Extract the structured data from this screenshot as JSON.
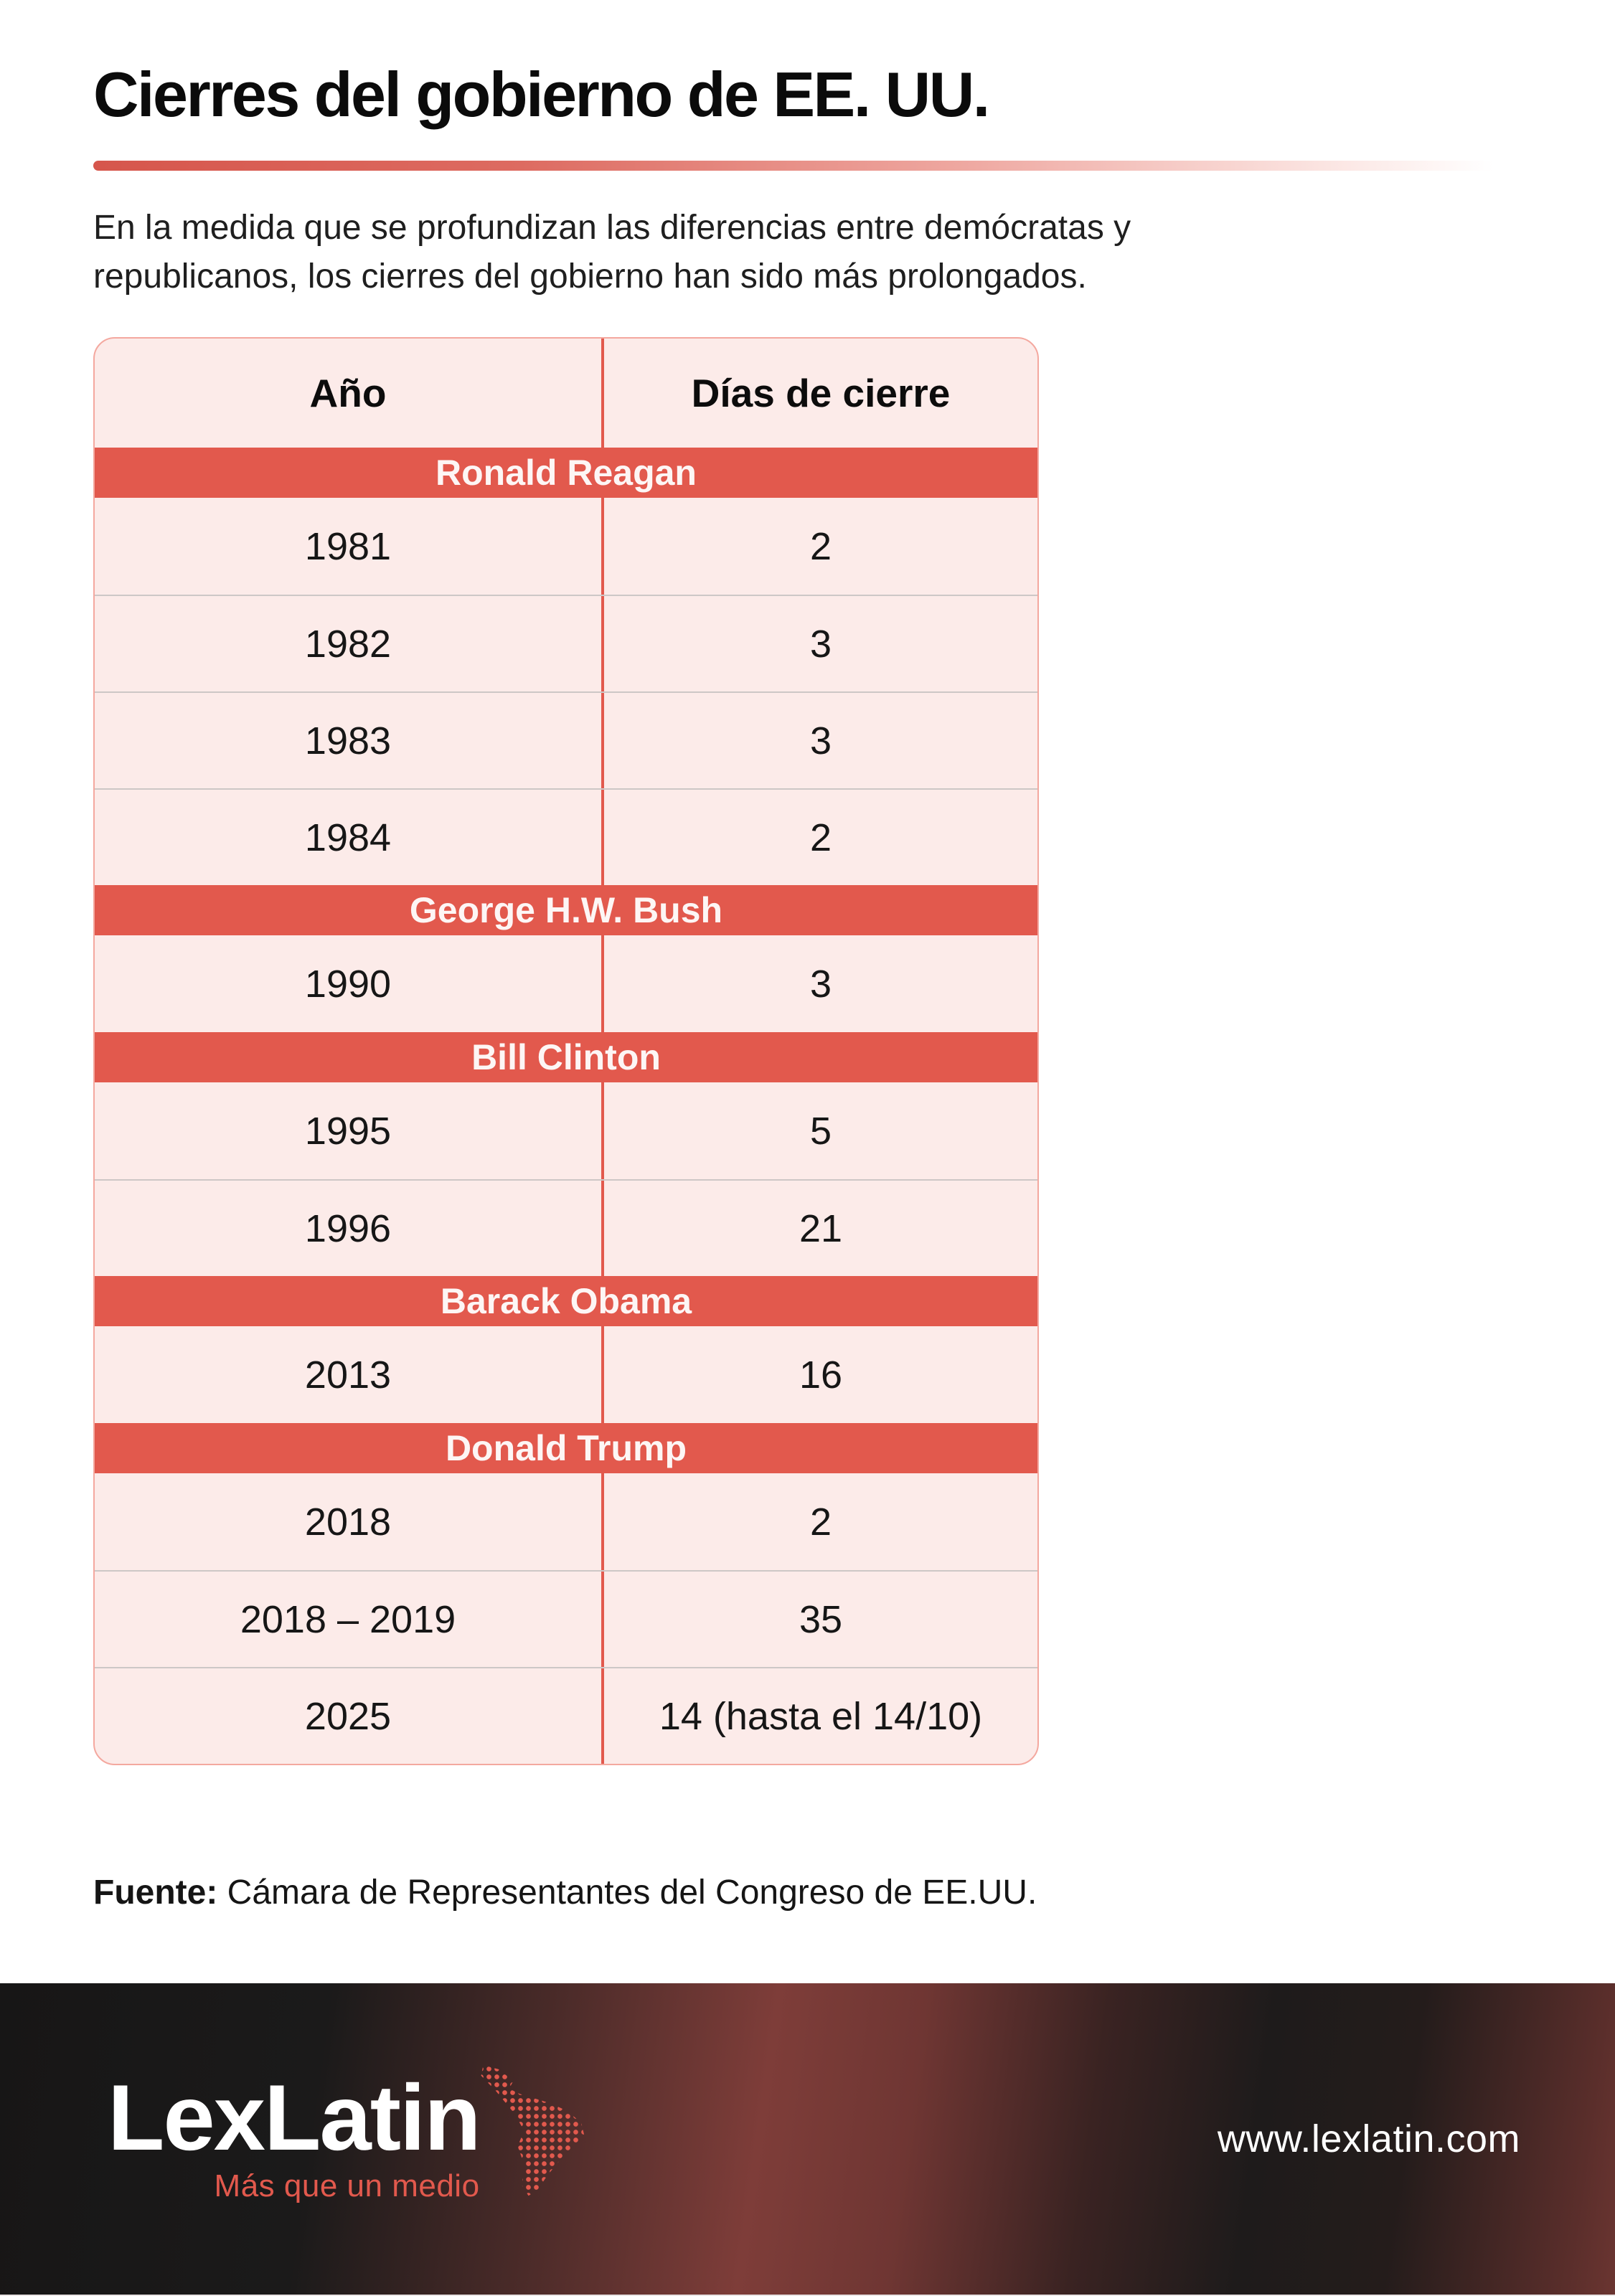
{
  "page": {
    "title": "Cierres del gobierno de EE. UU.",
    "subtitle_lines": [
      "En la medida que se profundizan las diferencias entre demócratas y",
      "republicanos, los cierres del gobierno han sido más prolongados."
    ]
  },
  "chart_data": {
    "type": "table",
    "title": "Cierres del gobierno de EE. UU.",
    "columns": [
      "Año",
      "Días de cierre"
    ],
    "groups": [
      {
        "president": "Ronald Reagan",
        "rows": [
          [
            "1981",
            "2"
          ],
          [
            "1982",
            "3"
          ],
          [
            "1983",
            "3"
          ],
          [
            "1984",
            "2"
          ]
        ]
      },
      {
        "president": "George H.W. Bush",
        "rows": [
          [
            "1990",
            "3"
          ]
        ]
      },
      {
        "president": "Bill Clinton",
        "rows": [
          [
            "1995",
            "5"
          ],
          [
            "1996",
            "21"
          ]
        ]
      },
      {
        "president": "Barack Obama",
        "rows": [
          [
            "2013",
            "16"
          ]
        ]
      },
      {
        "president": "Donald Trump",
        "rows": [
          [
            "2018",
            "2"
          ],
          [
            "2018 – 2019",
            "35"
          ],
          [
            "2025",
            "14 (hasta el 14/10)"
          ]
        ]
      }
    ]
  },
  "source": {
    "label": "Fuente:",
    "text": " Cámara de Representantes del Congreso de EE.UU."
  },
  "footer": {
    "brand": "LexLatin",
    "tagline": "Más que un medio",
    "url": "www.lexlatin.com"
  },
  "colors": {
    "accent": "#e2594d",
    "rule_red": "#d6564c",
    "table_bg": "#fcebe9",
    "table_border": "#f4a89f",
    "row_divider": "#cdc7c6",
    "band_text": "#fdf6f5",
    "logo_white": "#ffffff",
    "footer_url": "#ffffff"
  }
}
